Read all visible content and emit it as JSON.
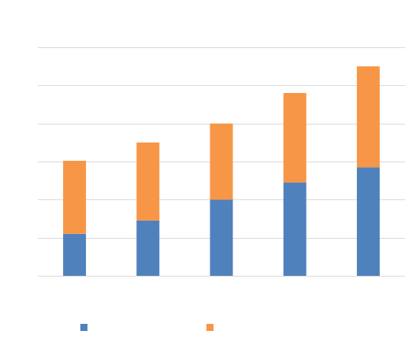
{
  "chart_data": {
    "type": "bar",
    "stacked": true,
    "title": "",
    "xlabel": "",
    "ylabel": "",
    "categories": [
      "",
      "",
      "",
      "",
      ""
    ],
    "ylim": [
      0,
      6
    ],
    "gridlines": [
      0,
      1,
      2,
      3,
      4,
      5,
      6
    ],
    "grid": true,
    "legend_position": "bottom",
    "series": [
      {
        "values": [
          1.1,
          1.45,
          2.0,
          2.45,
          2.85
        ],
        "color": "#4f81bd"
      },
      {
        "values": [
          1.92,
          2.05,
          2.0,
          2.35,
          2.65
        ],
        "color": "#f79646"
      }
    ]
  }
}
